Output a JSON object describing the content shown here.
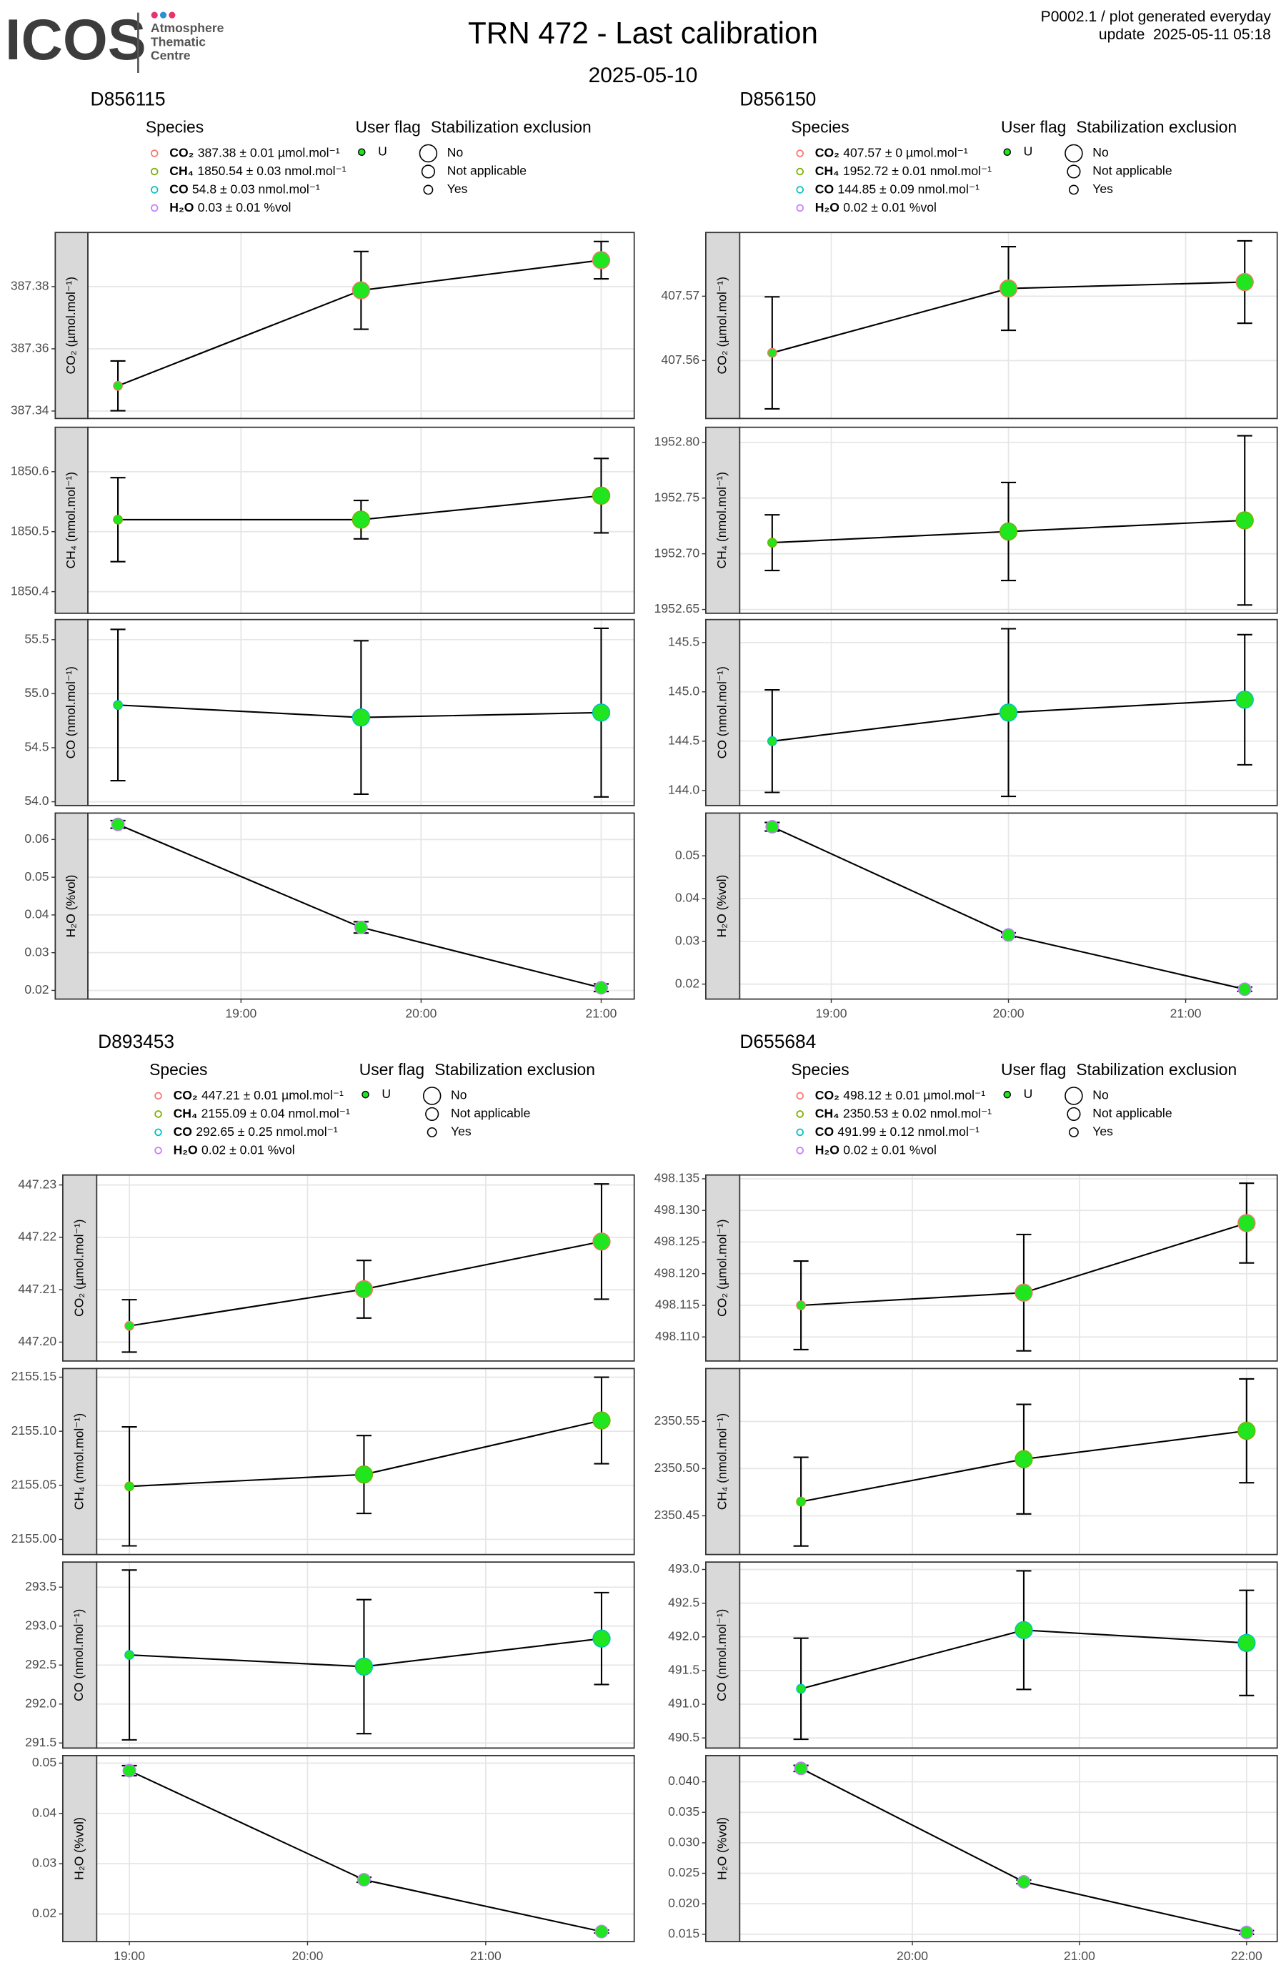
{
  "header": {
    "logo": "ICOS",
    "logo_lines": [
      "Atmosphere",
      "Thematic",
      "Centre"
    ],
    "title": "TRN 472 - Last calibration",
    "subtitle": "2025-05-10",
    "info": [
      "P0002.1 / plot generated everyday",
      "update  2025-05-11 05:18"
    ]
  },
  "chart_data": [
    {
      "type": "line",
      "title": "D856115",
      "x": [
        "18:19",
        "19:40",
        "21:00"
      ],
      "xlim": [
        "18:09",
        "21:11"
      ],
      "xticks": [
        "19:00",
        "20:00",
        "21:00"
      ],
      "grid": true,
      "legend": {
        "species_title": "Species",
        "species": [
          {
            "name": "CO₂",
            "text": "387.38 ± 0.01 µmol.mol⁻¹",
            "color": "#f8766d"
          },
          {
            "name": "CH₄",
            "text": "1850.54 ± 0.03 nmol.mol⁻¹",
            "color": "#7cae00"
          },
          {
            "name": "CO",
            "text": "54.8 ± 0.03 nmol.mol⁻¹",
            "color": "#00bfc4"
          },
          {
            "name": "H₂O",
            "text": "0.03 ± 0.01 %vol",
            "color": "#c77cff"
          }
        ],
        "flag_title": "User flag",
        "flags": [
          {
            "label": "U",
            "color": "#1fe61f"
          }
        ],
        "size_title": "Stabilization exclusion",
        "sizes": [
          "No",
          "Not applicable",
          "Yes"
        ]
      },
      "panels": [
        {
          "ylabel": "CO₂ (µmol.mol⁻¹)",
          "ylim": [
            387.3376,
            387.3974
          ],
          "yticks": [
            387.34,
            387.36,
            387.38
          ],
          "values": [
            387.3481,
            387.3788,
            387.3885
          ],
          "errors": [
            0.008,
            0.0125,
            0.006
          ],
          "exclusion": [
            "Yes",
            "No",
            "No"
          ]
        },
        {
          "ylabel": "CH₄ (nmol.mol⁻¹)",
          "ylim": [
            1850.364,
            1850.674
          ],
          "yticks": [
            1850.4,
            1850.5,
            1850.6
          ],
          "values": [
            1850.52,
            1850.52,
            1850.56
          ],
          "errors": [
            0.07,
            0.032,
            0.062
          ],
          "exclusion": [
            "Yes",
            "No",
            "No"
          ]
        },
        {
          "ylabel": "CO (nmol.mol⁻¹)",
          "ylim": [
            53.965,
            55.686
          ],
          "yticks": [
            {
              "value": 54,
              "label": "54.0"
            },
            54.5,
            {
              "value": 55,
              "label": "55.0"
            },
            55.5
          ],
          "values": [
            54.895,
            54.78,
            54.825
          ],
          "errors": [
            0.7,
            0.71,
            0.78
          ],
          "exclusion": [
            "Yes",
            "No",
            "No"
          ]
        },
        {
          "ylabel": "H₂O (%vol)",
          "ylim": [
            0.0177,
            0.067
          ],
          "yticks": [
            0.02,
            0.03,
            0.04,
            0.05,
            0.06
          ],
          "values": [
            0.064,
            0.0367,
            0.0207
          ],
          "errors": [
            0.001,
            0.0015,
            0.001
          ],
          "exclusion": [
            "Not applicable",
            "Not applicable",
            "Not applicable"
          ]
        }
      ]
    },
    {
      "type": "line",
      "title": "D856150",
      "x": [
        "18:40",
        "20:00",
        "21:20"
      ],
      "xlim": [
        "18:29",
        "21:31"
      ],
      "xticks": [
        "19:00",
        "20:00",
        "21:00"
      ],
      "grid": true,
      "legend": {
        "species_title": "Species",
        "species": [
          {
            "name": "CO₂",
            "text": "407.57 ± 0 µmol.mol⁻¹",
            "color": "#f8766d"
          },
          {
            "name": "CH₄",
            "text": "1952.72 ± 0.01 nmol.mol⁻¹",
            "color": "#7cae00"
          },
          {
            "name": "CO",
            "text": "144.85 ± 0.09 nmol.mol⁻¹",
            "color": "#00bfc4"
          },
          {
            "name": "H₂O",
            "text": "0.02 ± 0.01 %vol",
            "color": "#c77cff"
          }
        ],
        "flag_title": "User flag",
        "flags": [
          {
            "label": "U",
            "color": "#1fe61f"
          }
        ],
        "size_title": "Stabilization exclusion",
        "sizes": [
          "No",
          "Not applicable",
          "Yes"
        ]
      },
      "panels": [
        {
          "ylabel": "CO₂ (µmol.mol⁻¹)",
          "ylim": [
            407.551,
            407.5799
          ],
          "yticks": [
            407.56,
            407.57
          ],
          "values": [
            407.5612,
            407.5712,
            407.5722
          ],
          "errors": [
            0.0087,
            0.0065,
            0.0064
          ],
          "exclusion": [
            "Yes",
            "No",
            "No"
          ]
        },
        {
          "ylabel": "CH₄ (nmol.mol⁻¹)",
          "ylim": [
            1952.6466,
            1952.8136
          ],
          "yticks": [
            1952.65,
            {
              "value": 1952.7,
              "label": "1952.70"
            },
            1952.75,
            {
              "value": 1952.8,
              "label": "1952.80"
            }
          ],
          "values": [
            1952.71,
            1952.72,
            1952.73
          ],
          "errors": [
            0.025,
            0.044,
            0.076
          ],
          "exclusion": [
            "Yes",
            "No",
            "No"
          ]
        },
        {
          "ylabel": "CO (nmol.mol⁻¹)",
          "ylim": [
            143.847,
            145.733
          ],
          "yticks": [
            {
              "value": 144,
              "label": "144.0"
            },
            144.5,
            {
              "value": 145,
              "label": "145.0"
            },
            145.5
          ],
          "values": [
            144.5,
            144.79,
            144.92
          ],
          "errors": [
            0.52,
            0.85,
            0.66
          ],
          "exclusion": [
            "Yes",
            "No",
            "No"
          ]
        },
        {
          "ylabel": "H₂O (%vol)",
          "ylim": [
            0.0165,
            0.06
          ],
          "yticks": [
            0.02,
            0.03,
            0.04,
            0.05
          ],
          "values": [
            0.0568,
            0.0315,
            0.0188
          ],
          "errors": [
            0.001,
            0.0005,
            0.0005
          ],
          "exclusion": [
            "Not applicable",
            "Not applicable",
            "Not applicable"
          ]
        }
      ]
    },
    {
      "type": "line",
      "title": "D893453",
      "x": [
        "19:00",
        "20:19",
        "21:39"
      ],
      "xlim": [
        "18:49",
        "21:50"
      ],
      "xticks": [
        "19:00",
        "20:00",
        "21:00"
      ],
      "grid": true,
      "legend": {
        "species_title": "Species",
        "species": [
          {
            "name": "CO₂",
            "text": "447.21 ± 0.01 µmol.mol⁻¹",
            "color": "#f8766d"
          },
          {
            "name": "CH₄",
            "text": "2155.09 ± 0.04 nmol.mol⁻¹",
            "color": "#7cae00"
          },
          {
            "name": "CO",
            "text": "292.65 ± 0.25 nmol.mol⁻¹",
            "color": "#00bfc4"
          },
          {
            "name": "H₂O",
            "text": "0.02 ± 0.01 %vol",
            "color": "#c77cff"
          }
        ],
        "flag_title": "User flag",
        "flags": [
          {
            "label": "U",
            "color": "#1fe61f"
          }
        ],
        "size_title": "Stabilization exclusion",
        "sizes": [
          "No",
          "Not applicable",
          "Yes"
        ]
      },
      "panels": [
        {
          "ylabel": "CO₂ (µmol.mol⁻¹)",
          "ylim": [
            447.1964,
            447.2319
          ],
          "yticks": [
            {
              "value": 447.2,
              "label": "447.20"
            },
            447.21,
            447.22,
            447.23
          ],
          "values": [
            447.2031,
            447.2101,
            447.2192
          ],
          "errors": [
            0.005,
            0.0055,
            0.011
          ],
          "exclusion": [
            "Yes",
            "No",
            "No"
          ]
        },
        {
          "ylabel": "CH₄ (nmol.mol⁻¹)",
          "ylim": [
            2154.986,
            2155.158
          ],
          "yticks": [
            {
              "value": 2155,
              "label": "2155.00"
            },
            2155.05,
            {
              "value": 2155.1,
              "label": "2155.10"
            },
            2155.15
          ],
          "values": [
            2155.049,
            2155.06,
            2155.11
          ],
          "errors": [
            0.055,
            0.036,
            0.04
          ],
          "exclusion": [
            "Yes",
            "No",
            "No"
          ]
        },
        {
          "ylabel": "CO (nmol.mol⁻¹)",
          "ylim": [
            291.435,
            293.822
          ],
          "yticks": [
            291.5,
            {
              "value": 292,
              "label": "292.0"
            },
            292.5,
            {
              "value": 293,
              "label": "293.0"
            },
            293.5
          ],
          "values": [
            292.63,
            292.48,
            292.84
          ],
          "errors": [
            1.09,
            0.86,
            0.59
          ],
          "exclusion": [
            "Yes",
            "No",
            "No"
          ]
        },
        {
          "ylabel": "H₂O (%vol)",
          "ylim": [
            0.0145,
            0.0515
          ],
          "yticks": [
            0.02,
            0.03,
            0.04,
            0.05
          ],
          "values": [
            0.0485,
            0.0268,
            0.0165
          ],
          "errors": [
            0.001,
            0.0005,
            0.0003
          ],
          "exclusion": [
            "Not applicable",
            "Not applicable",
            "Not applicable"
          ]
        }
      ]
    },
    {
      "type": "line",
      "title": "D655684",
      "x": [
        "19:20",
        "20:40",
        "22:00"
      ],
      "xlim": [
        "18:58",
        "22:11"
      ],
      "xticks": [
        "20:00",
        "21:00",
        "22:00"
      ],
      "grid": true,
      "legend": {
        "species_title": "Species",
        "species": [
          {
            "name": "CO₂",
            "text": "498.12 ± 0.01 µmol.mol⁻¹",
            "color": "#f8766d"
          },
          {
            "name": "CH₄",
            "text": "2350.53 ± 0.02 nmol.mol⁻¹",
            "color": "#7cae00"
          },
          {
            "name": "CO",
            "text": "491.99 ± 0.12 nmol.mol⁻¹",
            "color": "#00bfc4"
          },
          {
            "name": "H₂O",
            "text": "0.02 ± 0.01 %vol",
            "color": "#c77cff"
          }
        ],
        "flag_title": "User flag",
        "flags": [
          {
            "label": "U",
            "color": "#1fe61f"
          }
        ],
        "size_title": "Stabilization exclusion",
        "sizes": [
          "No",
          "Not applicable",
          "Yes"
        ]
      },
      "panels": [
        {
          "ylabel": "CO₂ (µmol.mol⁻¹)",
          "ylim": [
            498.1062,
            498.1356
          ],
          "yticks": [
            {
              "value": 498.11,
              "label": "498.110"
            },
            498.115,
            {
              "value": 498.12,
              "label": "498.120"
            },
            498.125,
            {
              "value": 498.13,
              "label": "498.130"
            },
            498.135
          ],
          "values": [
            498.115,
            498.117,
            498.128
          ],
          "errors": [
            0.007,
            0.0092,
            0.0063
          ],
          "exclusion": [
            "Yes",
            "No",
            "No"
          ]
        },
        {
          "ylabel": "CH₄ (nmol.mol⁻¹)",
          "ylim": [
            2350.409,
            2350.606
          ],
          "yticks": [
            2350.45,
            {
              "value": 2350.5,
              "label": "2350.50"
            },
            2350.55
          ],
          "values": [
            2350.465,
            2350.51,
            2350.54
          ],
          "errors": [
            0.047,
            0.058,
            0.055
          ],
          "exclusion": [
            "Yes",
            "No",
            "No"
          ]
        },
        {
          "ylabel": "CO (nmol.mol⁻¹)",
          "ylim": [
            490.35,
            493.11
          ],
          "yticks": [
            490.5,
            {
              "value": 491,
              "label": "491.0"
            },
            491.5,
            {
              "value": 492,
              "label": "492.0"
            },
            492.5,
            {
              "value": 493,
              "label": "493.0"
            }
          ],
          "values": [
            491.23,
            492.1,
            491.91
          ],
          "errors": [
            0.75,
            0.88,
            0.78
          ],
          "exclusion": [
            "Yes",
            "No",
            "No"
          ]
        },
        {
          "ylabel": "H₂O (%vol)",
          "ylim": [
            0.0138,
            0.0443
          ],
          "yticks": [
            0.015,
            {
              "value": 0.02,
              "label": "0.020"
            },
            0.025,
            {
              "value": 0.03,
              "label": "0.030"
            },
            0.035,
            {
              "value": 0.04,
              "label": "0.040"
            }
          ],
          "values": [
            0.0422,
            0.0236,
            0.0153
          ],
          "errors": [
            0.0005,
            0.0003,
            0.0003
          ],
          "exclusion": [
            "Not applicable",
            "Not applicable",
            "Not applicable"
          ]
        }
      ]
    }
  ]
}
